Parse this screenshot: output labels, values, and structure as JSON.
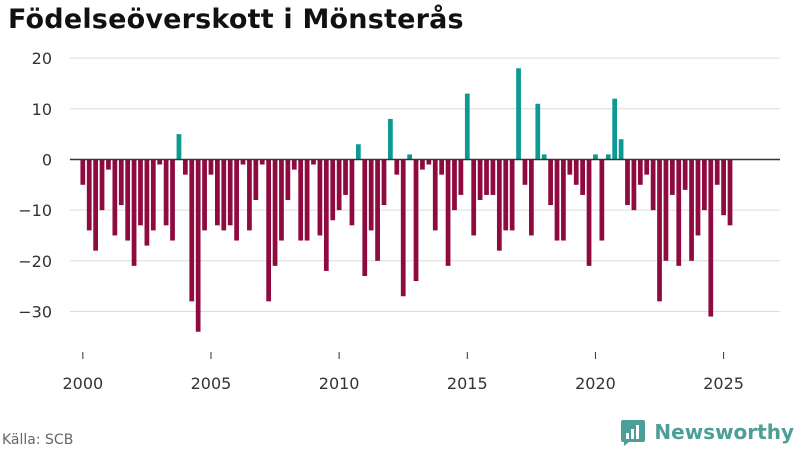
{
  "title": "Födelseöverskott i Mönsterås",
  "source": "Källa: SCB",
  "brand": {
    "name": "Newsworthy",
    "icon": "newsworthy-logo-icon"
  },
  "colors": {
    "positive": "#0d9a93",
    "negative": "#8f0a3f",
    "grid": "#dcdcdc",
    "zero_line": "#333333"
  },
  "chart_data": {
    "type": "bar",
    "title": "Födelseöverskott i Mönsterås",
    "xlabel": "",
    "ylabel": "",
    "frequency": "quarterly",
    "start": "2000 Q1",
    "ylim": [
      -38,
      22
    ],
    "xlim": [
      1999.5,
      2027.2
    ],
    "y_ticks": [
      20,
      10,
      0,
      -10,
      -20,
      -30
    ],
    "y_tick_labels": [
      "20",
      "10",
      "0",
      "−10",
      "−20",
      "−30"
    ],
    "x_ticks": [
      2000,
      2005,
      2010,
      2015,
      2020,
      2025
    ],
    "x_tick_labels": [
      "2000",
      "2005",
      "2010",
      "2015",
      "2020",
      "2025"
    ],
    "values": [
      -5,
      -14,
      -18,
      -10,
      -2,
      -15,
      -9,
      -16,
      -21,
      -13,
      -17,
      -14,
      -1,
      -13,
      -16,
      5,
      -3,
      -28,
      -34,
      -14,
      -3,
      -13,
      -14,
      -13,
      -16,
      -1,
      -14,
      -8,
      -1,
      -28,
      -21,
      -16,
      -8,
      -2,
      -16,
      -16,
      -1,
      -15,
      -22,
      -12,
      -10,
      -7,
      -13,
      3,
      -23,
      -14,
      -20,
      -9,
      8,
      -3,
      -27,
      1,
      -24,
      -2,
      -1,
      -14,
      -3,
      -21,
      -10,
      -7,
      13,
      -15,
      -8,
      -7,
      -7,
      -18,
      -14,
      -14,
      18,
      -5,
      -15,
      11,
      1,
      -9,
      -16,
      -16,
      -3,
      -5,
      -7,
      -21,
      1,
      -16,
      1,
      12,
      4,
      -9,
      -10,
      -5,
      -3,
      -10,
      -28,
      -20,
      -7,
      -21,
      -6,
      -20,
      -15,
      -10,
      -31,
      -5,
      -11,
      -13
    ]
  }
}
